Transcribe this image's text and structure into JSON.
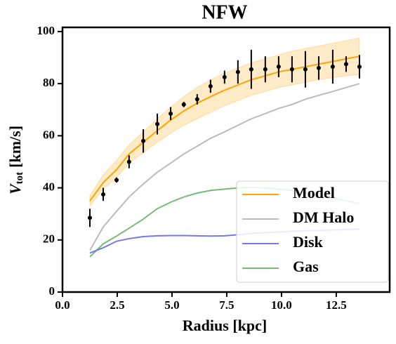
{
  "chart_data": {
    "type": "line",
    "title": "NFW",
    "xlabel": "Radius [kpc]",
    "ylabel": {
      "main": "V",
      "sub": "tot",
      "rest": "[km/s]"
    },
    "x": [
      1.25,
      1.86,
      2.47,
      3.04,
      3.69,
      4.33,
      4.94,
      5.54,
      6.15,
      6.76,
      7.4,
      8.01,
      8.62,
      9.26,
      9.87,
      10.48,
      11.09,
      11.7,
      12.34,
      12.95,
      13.56
    ],
    "observed": {
      "color": "#000000",
      "values": [
        28.5,
        37.5,
        43,
        50,
        58,
        64.5,
        68.5,
        72,
        74,
        79,
        82.5,
        84.5,
        85.5,
        85.5,
        86.5,
        85.5,
        85.5,
        86,
        86.5,
        87.5,
        86.5
      ],
      "errors": [
        3.5,
        2.5,
        1,
        2.5,
        4.5,
        4,
        2.5,
        1,
        2,
        2.5,
        2.5,
        4.5,
        7.5,
        5,
        4,
        5,
        7,
        4.5,
        6.5,
        3,
        4.5
      ]
    },
    "band": {
      "color": "#ffa500",
      "lower": [
        33,
        39.5,
        44,
        49.5,
        53.5,
        57.5,
        61,
        64,
        66.5,
        69,
        71.5,
        73.5,
        75.5,
        77,
        78.5,
        79.5,
        80.5,
        81.5,
        82.3,
        83,
        83.5
      ],
      "upper": [
        37,
        45,
        50.5,
        56.5,
        61.5,
        66.5,
        71,
        75,
        78.5,
        81.5,
        84,
        86,
        88,
        89.5,
        91,
        92.5,
        93.5,
        94.5,
        95.5,
        96.5,
        97.5
      ]
    },
    "series": [
      {
        "name": "Model",
        "color": "#ffa500",
        "values": [
          35,
          42,
          47,
          53,
          57.5,
          62,
          66,
          69.5,
          72.5,
          75,
          77.5,
          79.5,
          81.5,
          83,
          84.5,
          85.5,
          86.5,
          87.5,
          88.5,
          89.5,
          90.5
        ]
      },
      {
        "name": "DM Halo",
        "color": "#bbbbbb",
        "values": [
          16,
          25,
          31,
          36.5,
          41.5,
          46,
          49.5,
          53,
          56,
          59,
          61.5,
          64,
          66.5,
          68.5,
          70.5,
          72,
          74,
          75.5,
          77,
          78.5,
          80
        ]
      },
      {
        "name": "Disk",
        "color": "#7777ee",
        "values": [
          15,
          17,
          19.5,
          20.5,
          21.3,
          21.6,
          21.7,
          21.7,
          21.6,
          21.5,
          21.6,
          22,
          22.5,
          22.8,
          23,
          23.3,
          23.5,
          23.6,
          23.8,
          24,
          24.2
        ]
      },
      {
        "name": "Gas",
        "color": "#77bb77",
        "values": [
          13.5,
          18.5,
          21.5,
          24.5,
          28,
          32,
          34.5,
          36.5,
          38,
          39,
          39.5,
          40,
          40.2,
          40,
          39.5,
          39,
          38,
          37,
          36,
          35,
          34
        ]
      }
    ],
    "xlim": [
      0,
      14.94
    ],
    "ylim": [
      0,
      101.6
    ],
    "xticks": [
      {
        "value": 0,
        "label": "0.0"
      },
      2.5,
      {
        "value": 5,
        "label": "5.0"
      },
      7.5,
      {
        "value": 10,
        "label": "10.0"
      },
      12.5
    ],
    "yticks": [
      0,
      20,
      40,
      60,
      80,
      100
    ],
    "legend": "lower right"
  }
}
